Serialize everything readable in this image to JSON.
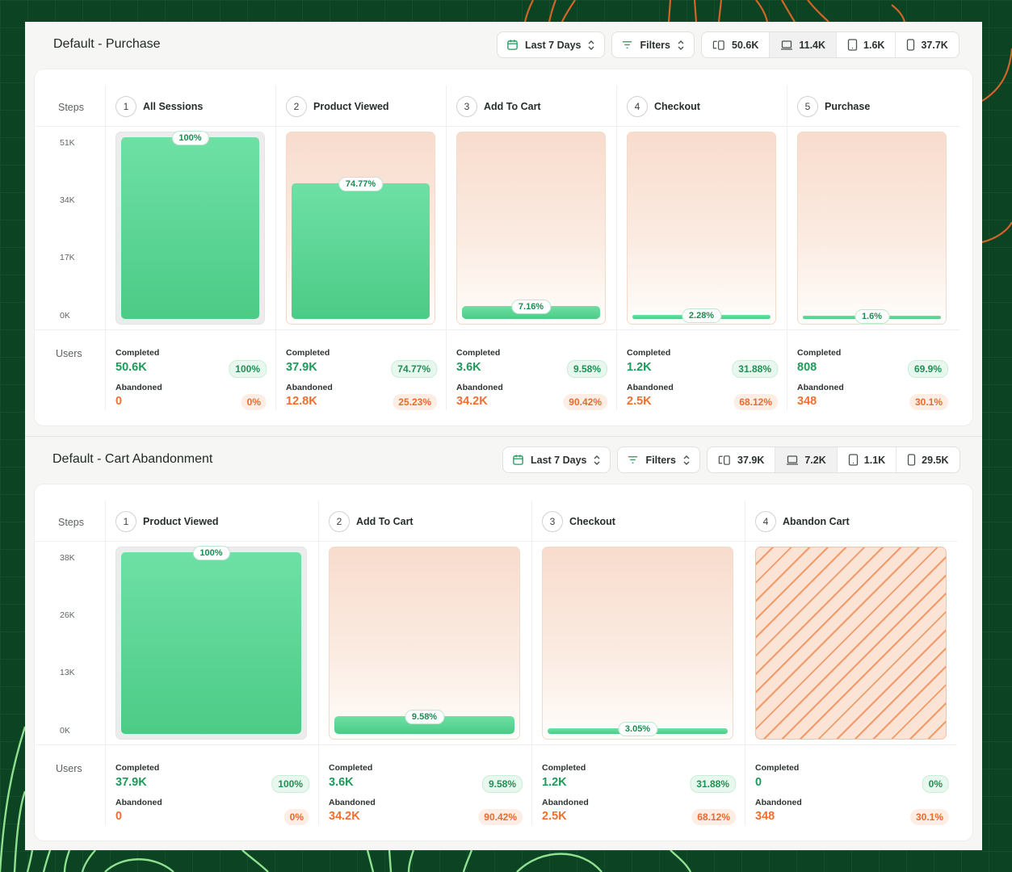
{
  "sections": [
    {
      "title": "Default - Purchase",
      "date_range": "Last 7 Days",
      "filters_label": "Filters",
      "devices": [
        {
          "icon": "multi-device-icon",
          "value": "50.6K"
        },
        {
          "icon": "laptop-icon",
          "value": "11.4K"
        },
        {
          "icon": "tablet-icon",
          "value": "1.6K"
        },
        {
          "icon": "phone-icon",
          "value": "37.7K"
        }
      ],
      "steps_label": "Steps",
      "users_label": "Users",
      "y_ticks": [
        "51K",
        "34K",
        "17K",
        "0K"
      ],
      "steps": [
        {
          "num": "1",
          "title": "All Sessions",
          "pct": "100%",
          "fill": 1.0,
          "style": "gray",
          "completed_label": "Completed",
          "completed": "50.6K",
          "completed_pct": "100%",
          "abandoned_label": "Abandoned",
          "abandoned": "0",
          "abandoned_pct": "0%"
        },
        {
          "num": "2",
          "title": "Product Viewed",
          "pct": "74.77%",
          "fill": 0.7477,
          "style": "peach",
          "completed_label": "Completed",
          "completed": "37.9K",
          "completed_pct": "74.77%",
          "abandoned_label": "Abandoned",
          "abandoned": "12.8K",
          "abandoned_pct": "25.23%"
        },
        {
          "num": "3",
          "title": "Add To Cart",
          "pct": "7.16%",
          "fill": 0.0716,
          "style": "peach",
          "completed_label": "Completed",
          "completed": "3.6K",
          "completed_pct": "9.58%",
          "abandoned_label": "Abandoned",
          "abandoned": "34.2K",
          "abandoned_pct": "90.42%"
        },
        {
          "num": "4",
          "title": "Checkout",
          "pct": "2.28%",
          "fill": 0.0228,
          "style": "peach",
          "completed_label": "Completed",
          "completed": "1.2K",
          "completed_pct": "31.88%",
          "abandoned_label": "Abandoned",
          "abandoned": "2.5K",
          "abandoned_pct": "68.12%"
        },
        {
          "num": "5",
          "title": "Purchase",
          "pct": "1.6%",
          "fill": 0.016,
          "style": "peach",
          "completed_label": "Completed",
          "completed": "808",
          "completed_pct": "69.9%",
          "abandoned_label": "Abandoned",
          "abandoned": "348",
          "abandoned_pct": "30.1%"
        }
      ]
    },
    {
      "title": "Default - Cart Abandonment",
      "date_range": "Last 7 Days",
      "filters_label": "Filters",
      "devices": [
        {
          "icon": "multi-device-icon",
          "value": "37.9K"
        },
        {
          "icon": "laptop-icon",
          "value": "7.2K"
        },
        {
          "icon": "tablet-icon",
          "value": "1.1K"
        },
        {
          "icon": "phone-icon",
          "value": "29.5K"
        }
      ],
      "steps_label": "Steps",
      "users_label": "Users",
      "y_ticks": [
        "38K",
        "26K",
        "13K",
        "0K"
      ],
      "steps": [
        {
          "num": "1",
          "title": "Product Viewed",
          "pct": "100%",
          "fill": 1.0,
          "style": "gray",
          "completed_label": "Completed",
          "completed": "37.9K",
          "completed_pct": "100%",
          "abandoned_label": "Abandoned",
          "abandoned": "0",
          "abandoned_pct": "0%"
        },
        {
          "num": "2",
          "title": "Add To Cart",
          "pct": "9.58%",
          "fill": 0.0958,
          "style": "peach",
          "completed_label": "Completed",
          "completed": "3.6K",
          "completed_pct": "9.58%",
          "abandoned_label": "Abandoned",
          "abandoned": "34.2K",
          "abandoned_pct": "90.42%"
        },
        {
          "num": "3",
          "title": "Checkout",
          "pct": "3.05%",
          "fill": 0.0305,
          "style": "peach",
          "completed_label": "Completed",
          "completed": "1.2K",
          "completed_pct": "31.88%",
          "abandoned_label": "Abandoned",
          "abandoned": "2.5K",
          "abandoned_pct": "68.12%"
        },
        {
          "num": "4",
          "title": "Abandon Cart",
          "pct": "",
          "fill": 0,
          "style": "hatch",
          "completed_label": "Completed",
          "completed": "0",
          "completed_pct": "0%",
          "abandoned_label": "Abandoned",
          "abandoned": "348",
          "abandoned_pct": "30.1%"
        }
      ]
    }
  ],
  "colors": {
    "background": "#0b4323",
    "accent_green": "#1f9a5b",
    "accent_orange": "#ee6f32",
    "bar_green": "#4ccb86",
    "frame_peach": "#f8dccd"
  }
}
